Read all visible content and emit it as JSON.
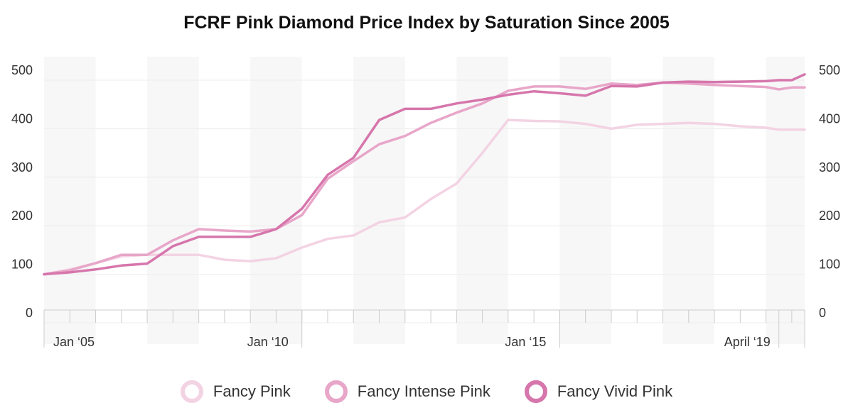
{
  "chart_data": {
    "type": "line",
    "title": "FCRF Pink Diamond Price Index by Saturation Since 2005",
    "xlabel": "",
    "ylabel": "",
    "ylim": [
      0,
      500
    ],
    "yticks": [
      0,
      100,
      200,
      300,
      400,
      500
    ],
    "xlim": [
      "2005-01",
      "2019-10"
    ],
    "x_tick_labels": [
      {
        "x": "2005-01",
        "label": "Jan ‘05"
      },
      {
        "x": "2010-01",
        "label": "Jan ‘10"
      },
      {
        "x": "2015-01",
        "label": "Jan ‘15"
      },
      {
        "x": "2019-04",
        "label": "April ‘19"
      }
    ],
    "dual_y_axis": true,
    "grid": true,
    "legend_position": "bottom",
    "x": [
      "2005-01",
      "2005-07",
      "2006-01",
      "2006-07",
      "2007-01",
      "2007-07",
      "2008-01",
      "2008-07",
      "2009-01",
      "2009-07",
      "2010-01",
      "2010-07",
      "2011-01",
      "2011-07",
      "2012-01",
      "2012-07",
      "2013-01",
      "2013-07",
      "2014-01",
      "2014-07",
      "2015-01",
      "2015-07",
      "2016-01",
      "2016-07",
      "2017-01",
      "2017-07",
      "2018-01",
      "2018-07",
      "2019-01",
      "2019-04",
      "2019-07",
      "2019-10"
    ],
    "series": [
      {
        "name": "Fancy Pink",
        "color": "#f3d3e3",
        "values": [
          100,
          110,
          123,
          137,
          140,
          140,
          140,
          130,
          127,
          133,
          155,
          173,
          180,
          207,
          217,
          255,
          287,
          350,
          418,
          416,
          415,
          410,
          400,
          408,
          410,
          412,
          410,
          405,
          402,
          398,
          398,
          398
        ]
      },
      {
        "name": "Fancy Intense Pink",
        "color": "#e8a6c9",
        "values": [
          100,
          108,
          123,
          140,
          140,
          170,
          193,
          190,
          188,
          193,
          222,
          297,
          333,
          368,
          385,
          412,
          433,
          452,
          478,
          487,
          487,
          482,
          493,
          490,
          495,
          493,
          490,
          488,
          486,
          481,
          485,
          485
        ]
      },
      {
        "name": "Fancy Vivid Pink",
        "color": "#d676ac",
        "values": [
          100,
          104,
          110,
          118,
          122,
          158,
          177,
          177,
          177,
          193,
          235,
          305,
          340,
          418,
          441,
          441,
          452,
          460,
          470,
          477,
          473,
          468,
          488,
          487,
          495,
          497,
          496,
          497,
          498,
          500,
          500,
          512
        ]
      }
    ]
  }
}
